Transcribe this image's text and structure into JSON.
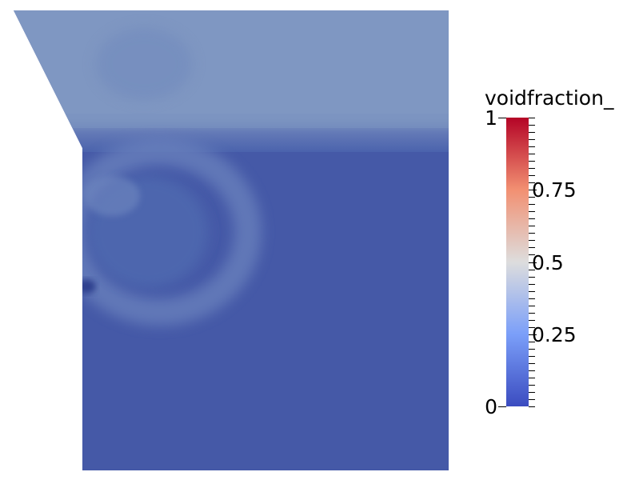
{
  "chart_data": {
    "type": "heatmap",
    "colorbar": {
      "title": "voidfraction_",
      "range": [
        0,
        1
      ],
      "tick_labels": [
        "0",
        "0.25",
        "0.5",
        "0.75",
        "1"
      ],
      "tick_values": [
        0,
        0.25,
        0.5,
        0.75,
        1
      ],
      "colormap": "cool-to-warm",
      "colors": {
        "low": "#3b4cc0",
        "mid": "#dddddd",
        "high": "#b40426"
      }
    },
    "field": {
      "upper_region_value": 0.28,
      "lower_region_value": 0.08,
      "vortex_ring_value": 0.18,
      "min_spot_value": 0.0
    }
  }
}
